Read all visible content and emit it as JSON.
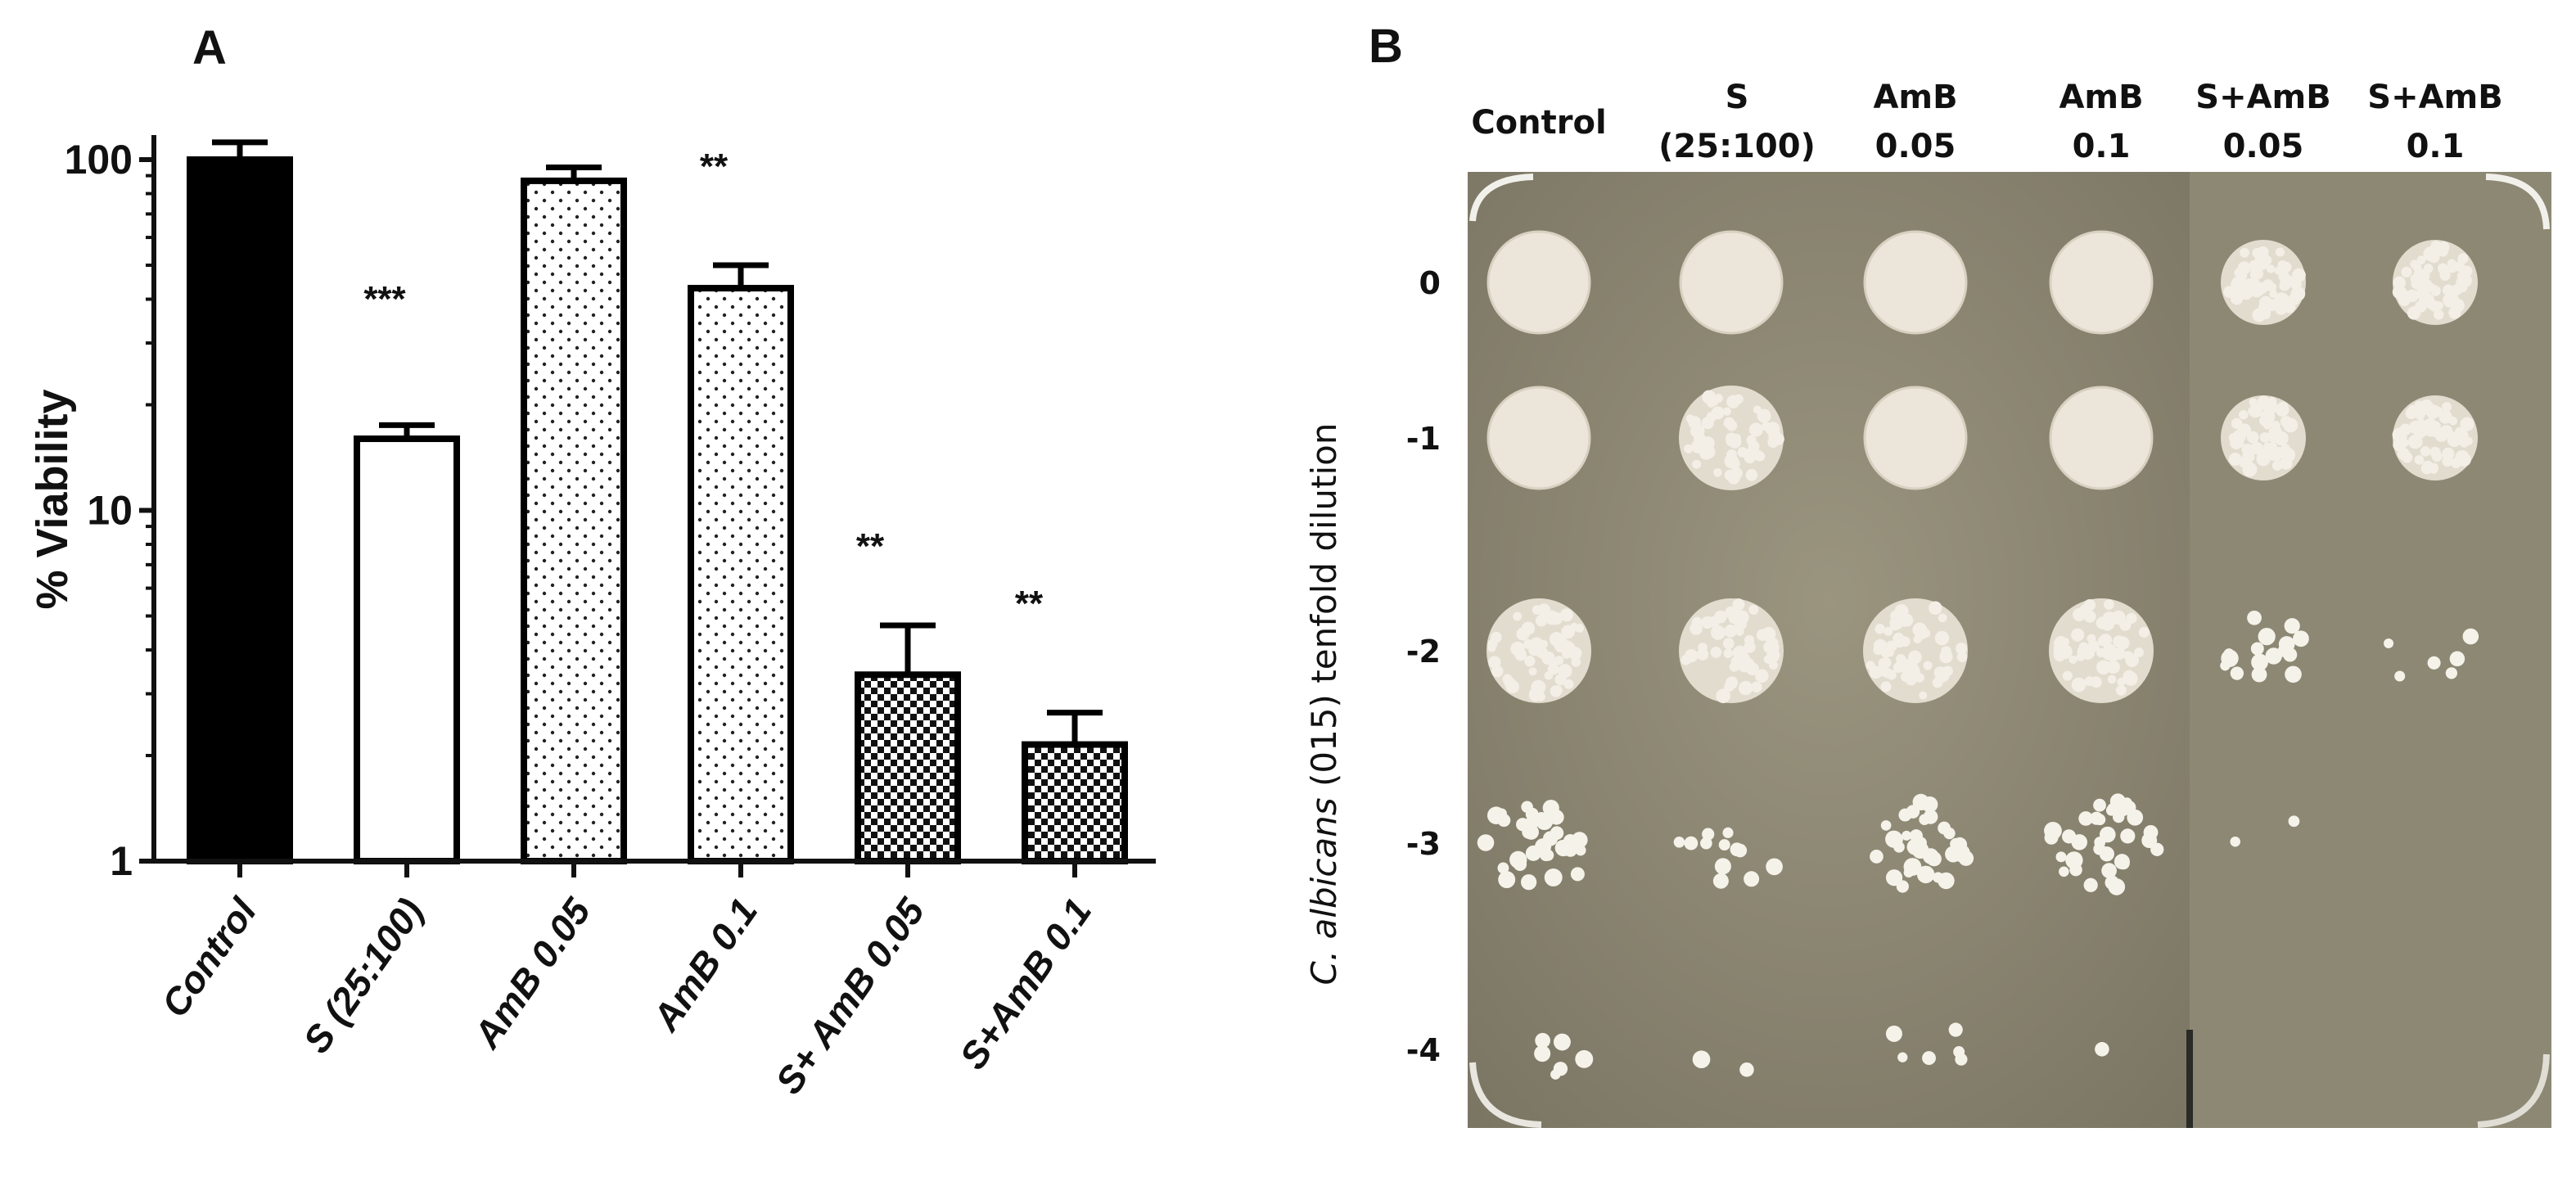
{
  "panel_a": {
    "label": "A",
    "chart_data": {
      "type": "bar",
      "ylabel": "% Viability",
      "yscale": "log",
      "ylim": [
        1,
        120
      ],
      "yticks": [
        {
          "value": 1,
          "label": "1"
        },
        {
          "value": 10,
          "label": "10"
        },
        {
          "value": 100,
          "label": "100"
        }
      ],
      "categories": [
        "Control",
        "S (25:100)",
        "AmB 0.05",
        "AmB 0.1",
        "S+ AmB 0.05",
        "S+AmB 0.1"
      ],
      "values": [
        100,
        16,
        87,
        43,
        3.4,
        2.15
      ],
      "errors": [
        12,
        1.5,
        8,
        7,
        1.3,
        0.5
      ],
      "significance": [
        "",
        "***",
        "",
        "**",
        "**",
        "**"
      ],
      "fills": [
        "solid-black",
        "white",
        "fine-dots",
        "fine-dots",
        "checker",
        "checker"
      ]
    }
  },
  "panel_b": {
    "label": "B",
    "columns": [
      {
        "line1": "Control",
        "line2": ""
      },
      {
        "line1": "S",
        "line2": "(25:100)"
      },
      {
        "line1": "AmB",
        "line2": "0.05"
      },
      {
        "line1": "AmB",
        "line2": "0.1"
      },
      {
        "line1": "S+AmB",
        "line2": "0.05"
      },
      {
        "line1": "S+AmB",
        "line2": "0.1"
      }
    ],
    "rows": [
      "0",
      "-1",
      "-2",
      "-3",
      "-4"
    ],
    "ylabel_italic": "C. albicans",
    "ylabel_rest": " (015) tenfold dilution",
    "colors": {
      "agar": "#8f8a75",
      "agar_dark": "#6f6b5a",
      "colony": "#ece6da"
    },
    "growth": [
      [
        "full",
        "full",
        "full",
        "full",
        "grainy",
        "grainy"
      ],
      [
        "full",
        "full-grainy",
        "full",
        "full",
        "grainy",
        "grainy"
      ],
      [
        "grainy",
        "grainy",
        "grainy",
        "grainy",
        "sparse",
        "few"
      ],
      [
        "cluster",
        "scattered",
        "cluster",
        "cluster",
        "trace",
        "none"
      ],
      [
        "few",
        "two",
        "few",
        "one",
        "none",
        "none"
      ]
    ]
  }
}
